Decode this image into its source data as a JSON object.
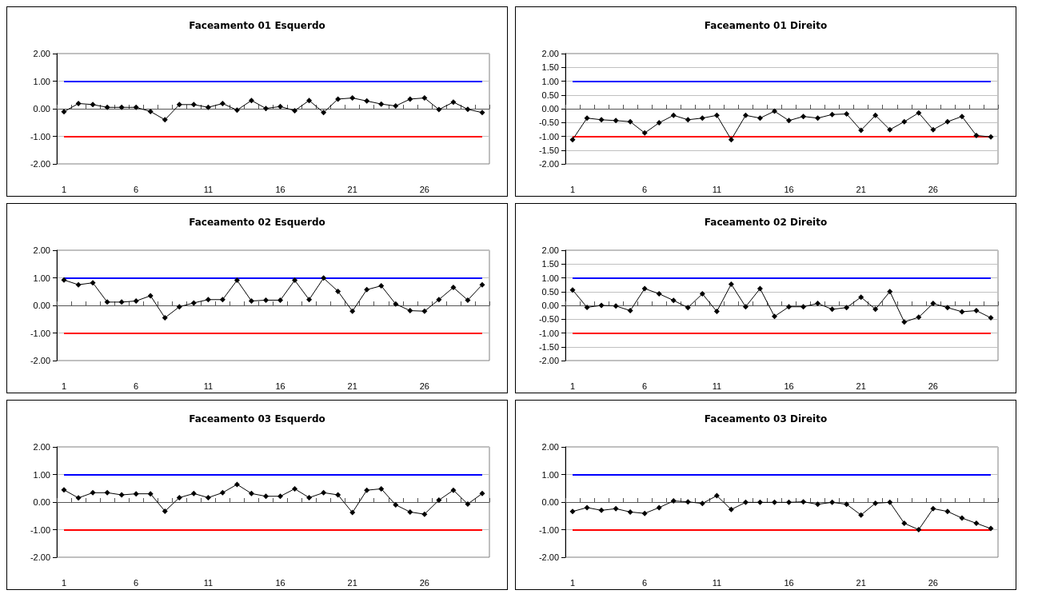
{
  "chart_data": [
    {
      "type": "line",
      "title": "Faceamento 01 Esquerdo",
      "categories": [
        "1",
        null,
        null,
        null,
        null,
        "6",
        null,
        null,
        null,
        null,
        "11",
        null,
        null,
        null,
        null,
        "16",
        null,
        null,
        null,
        null,
        "21",
        null,
        null,
        null,
        null,
        "26",
        null,
        null,
        null,
        null
      ],
      "series": [
        {
          "color": "#000000",
          "values": [
            -0.11,
            0.19,
            0.15,
            0.05,
            0.05,
            0.05,
            -0.1,
            -0.4,
            0.15,
            0.15,
            0.05,
            0.19,
            -0.05,
            0.3,
            0.01,
            0.08,
            -0.07,
            0.3,
            -0.14,
            0.35,
            0.39,
            0.28,
            0.17,
            0.1,
            0.35,
            0.39,
            -0.03,
            0.24,
            -0.02,
            -0.14
          ]
        }
      ],
      "ylim": [
        -2,
        2
      ],
      "yticks": [
        {
          "value": -2,
          "label": "-2.00"
        },
        {
          "value": -1,
          "label": "-1.00"
        },
        {
          "value": 0,
          "label": "0.00"
        },
        {
          "value": 1,
          "label": "1.00"
        },
        {
          "value": 2,
          "label": "2.00"
        }
      ],
      "ref_lines": [
        {
          "axis": "y",
          "value": 1,
          "color": "#0000ff"
        },
        {
          "axis": "y",
          "value": -1,
          "color": "#ff0000"
        }
      ],
      "grid": "y",
      "marker": "diamond"
    },
    {
      "type": "line",
      "title": "Faceamento 01 Direito",
      "categories": [
        "1",
        null,
        null,
        null,
        null,
        "6",
        null,
        null,
        null,
        null,
        "11",
        null,
        null,
        null,
        null,
        "16",
        null,
        null,
        null,
        null,
        "21",
        null,
        null,
        null,
        null,
        "26",
        null,
        null,
        null,
        null
      ],
      "series": [
        {
          "color": "#000000",
          "values": [
            -1.12,
            -0.34,
            -0.4,
            -0.43,
            -0.47,
            -0.88,
            -0.51,
            -0.24,
            -0.4,
            -0.34,
            -0.24,
            -1.12,
            -0.24,
            -0.34,
            -0.09,
            -0.43,
            -0.28,
            -0.34,
            -0.21,
            -0.19,
            -0.78,
            -0.24,
            -0.76,
            -0.47,
            -0.15,
            -0.76,
            -0.47,
            -0.28,
            -0.97,
            -1.02
          ]
        }
      ],
      "ylim": [
        -2,
        2
      ],
      "yticks": [
        {
          "value": -2,
          "label": "-2.00"
        },
        {
          "value": -1.5,
          "label": "-1.50"
        },
        {
          "value": -1,
          "label": "-1.00"
        },
        {
          "value": -0.5,
          "label": "-0.50"
        },
        {
          "value": 0,
          "label": "0.00"
        },
        {
          "value": 0.5,
          "label": "0.50"
        },
        {
          "value": 1,
          "label": "1.00"
        },
        {
          "value": 1.5,
          "label": "1.50"
        },
        {
          "value": 2,
          "label": "2.00"
        }
      ],
      "ref_lines": [
        {
          "axis": "y",
          "value": 1,
          "color": "#0000ff"
        },
        {
          "axis": "y",
          "value": -1,
          "color": "#ff0000"
        }
      ],
      "grid": "y",
      "marker": "diamond"
    },
    {
      "type": "line",
      "title": "Faceamento 02 Esquerdo",
      "categories": [
        "1",
        null,
        null,
        null,
        null,
        "6",
        null,
        null,
        null,
        null,
        "11",
        null,
        null,
        null,
        null,
        "16",
        null,
        null,
        null,
        null,
        "21",
        null,
        null,
        null,
        null,
        "26",
        null,
        null,
        null,
        null
      ],
      "series": [
        {
          "color": "#000000",
          "values": [
            0.92,
            0.75,
            0.82,
            0.12,
            0.12,
            0.16,
            0.35,
            -0.45,
            -0.05,
            0.09,
            0.21,
            0.21,
            0.91,
            0.16,
            0.19,
            0.19,
            0.91,
            0.21,
            0.99,
            0.51,
            -0.21,
            0.57,
            0.71,
            0.05,
            -0.19,
            -0.21,
            0.21,
            0.65,
            0.19,
            0.75
          ]
        }
      ],
      "ylim": [
        -2,
        2
      ],
      "yticks": [
        {
          "value": -2,
          "label": "-2.00"
        },
        {
          "value": -1,
          "label": "-1.00"
        },
        {
          "value": 0,
          "label": "0.00"
        },
        {
          "value": 1,
          "label": "1.00"
        },
        {
          "value": 2,
          "label": "2.00"
        }
      ],
      "ref_lines": [
        {
          "axis": "y",
          "value": 1,
          "color": "#0000ff"
        },
        {
          "axis": "y",
          "value": -1,
          "color": "#ff0000"
        }
      ],
      "grid": "y",
      "marker": "diamond"
    },
    {
      "type": "line",
      "title": "Faceamento 02 Direito",
      "categories": [
        "1",
        null,
        null,
        null,
        null,
        "6",
        null,
        null,
        null,
        null,
        "11",
        null,
        null,
        null,
        null,
        "16",
        null,
        null,
        null,
        null,
        "21",
        null,
        null,
        null,
        null,
        "26",
        null,
        null,
        null,
        null
      ],
      "series": [
        {
          "color": "#000000",
          "values": [
            0.56,
            -0.07,
            0.0,
            -0.02,
            -0.19,
            0.61,
            0.42,
            0.18,
            -0.08,
            0.42,
            -0.22,
            0.77,
            -0.05,
            0.61,
            -0.4,
            -0.05,
            -0.05,
            0.07,
            -0.14,
            -0.08,
            0.3,
            -0.14,
            0.5,
            -0.6,
            -0.43,
            0.07,
            -0.08,
            -0.23,
            -0.19,
            -0.45
          ]
        }
      ],
      "ylim": [
        -2,
        2
      ],
      "yticks": [
        {
          "value": -2,
          "label": "-2.00"
        },
        {
          "value": -1.5,
          "label": "-1.50"
        },
        {
          "value": -1,
          "label": "-1.00"
        },
        {
          "value": -0.5,
          "label": "-0.50"
        },
        {
          "value": 0,
          "label": "0.00"
        },
        {
          "value": 0.5,
          "label": "0.50"
        },
        {
          "value": 1,
          "label": "1.00"
        },
        {
          "value": 1.5,
          "label": "1.50"
        },
        {
          "value": 2,
          "label": "2.00"
        }
      ],
      "ref_lines": [
        {
          "axis": "y",
          "value": 1,
          "color": "#0000ff"
        },
        {
          "axis": "y",
          "value": -1,
          "color": "#ff0000"
        }
      ],
      "grid": "y",
      "marker": "diamond"
    },
    {
      "type": "line",
      "title": "Faceamento 03 Esquerdo",
      "categories": [
        "1",
        null,
        null,
        null,
        null,
        "6",
        null,
        null,
        null,
        null,
        "11",
        null,
        null,
        null,
        null,
        "16",
        null,
        null,
        null,
        null,
        "21",
        null,
        null,
        null,
        null,
        "26",
        null,
        null,
        null,
        null
      ],
      "series": [
        {
          "color": "#000000",
          "values": [
            0.44,
            0.15,
            0.34,
            0.34,
            0.26,
            0.3,
            0.3,
            -0.33,
            0.16,
            0.31,
            0.16,
            0.34,
            0.64,
            0.31,
            0.21,
            0.21,
            0.48,
            0.16,
            0.34,
            0.26,
            -0.38,
            0.43,
            0.48,
            -0.1,
            -0.36,
            -0.44,
            0.07,
            0.43,
            -0.07,
            0.31
          ]
        }
      ],
      "ylim": [
        -2,
        2
      ],
      "yticks": [
        {
          "value": -2,
          "label": "-2.00"
        },
        {
          "value": -1,
          "label": "-1.00"
        },
        {
          "value": 0,
          "label": "0.00"
        },
        {
          "value": 1,
          "label": "1.00"
        },
        {
          "value": 2,
          "label": "2.00"
        }
      ],
      "ref_lines": [
        {
          "axis": "y",
          "value": 1,
          "color": "#0000ff"
        },
        {
          "axis": "y",
          "value": -1,
          "color": "#ff0000"
        }
      ],
      "grid": "y",
      "marker": "diamond"
    },
    {
      "type": "line",
      "title": "Faceamento 03 Direito",
      "categories": [
        "1",
        null,
        null,
        null,
        null,
        "6",
        null,
        null,
        null,
        null,
        "11",
        null,
        null,
        null,
        null,
        "16",
        null,
        null,
        null,
        null,
        "21",
        null,
        null,
        null,
        null,
        "26",
        null,
        null,
        null,
        null
      ],
      "series": [
        {
          "color": "#000000",
          "values": [
            -0.34,
            -0.2,
            -0.3,
            -0.24,
            -0.36,
            -0.41,
            -0.2,
            0.04,
            0.01,
            -0.05,
            0.23,
            -0.27,
            -0.01,
            -0.01,
            -0.01,
            -0.01,
            0.01,
            -0.08,
            -0.01,
            -0.08,
            -0.47,
            -0.04,
            -0.01,
            -0.77,
            -1.0,
            -0.24,
            -0.34,
            -0.58,
            -0.77,
            -0.96
          ]
        }
      ],
      "ylim": [
        -2,
        2
      ],
      "yticks": [
        {
          "value": -2,
          "label": "-2.00"
        },
        {
          "value": -1,
          "label": "-1.00"
        },
        {
          "value": 0,
          "label": "0.00"
        },
        {
          "value": 1,
          "label": "1.00"
        },
        {
          "value": 2,
          "label": "2.00"
        }
      ],
      "ref_lines": [
        {
          "axis": "y",
          "value": 1,
          "color": "#0000ff"
        },
        {
          "axis": "y",
          "value": -1,
          "color": "#ff0000"
        }
      ],
      "grid": "y",
      "marker": "diamond"
    }
  ]
}
